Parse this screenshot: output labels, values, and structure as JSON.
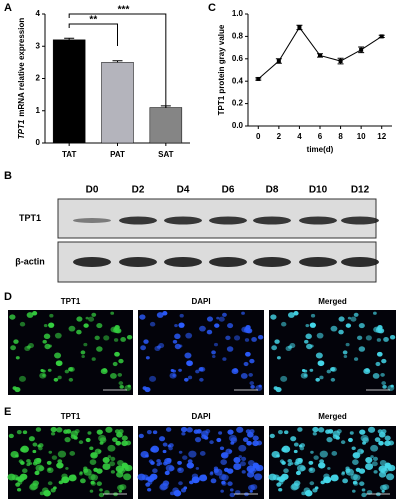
{
  "chart_data": [
    {
      "type": "bar",
      "panel": "A",
      "y_label_gene": "TPT1",
      "y_label": "mRNA relative  expression",
      "categories": [
        "TAT",
        "PAT",
        "SAT"
      ],
      "values": [
        3.2,
        2.5,
        1.1
      ],
      "errors": [
        0.05,
        0.05,
        0.05
      ],
      "colors": [
        "#000000",
        "#b4b4bc",
        "#858585"
      ],
      "ylim": [
        0,
        4
      ],
      "yticks": [
        0,
        1,
        2,
        3,
        4
      ],
      "annotations": [
        "**",
        "***"
      ]
    },
    {
      "type": "line",
      "panel": "C",
      "y_label": "TPT1 protein gray value",
      "x_label": "time(d)",
      "x": [
        0,
        2,
        4,
        6,
        8,
        10,
        12
      ],
      "values": [
        0.42,
        0.58,
        0.88,
        0.63,
        0.58,
        0.68,
        0.8
      ],
      "errors": [
        0.01,
        0.02,
        0.02,
        0.015,
        0.025,
        0.025,
        0.01
      ],
      "color": "#000000",
      "xlim": [
        -1,
        13
      ],
      "xticks": [
        0,
        2,
        4,
        6,
        8,
        10,
        12
      ],
      "ylim": [
        0,
        1
      ],
      "yticks": [
        {
          "value": 0,
          "label": "0.0"
        },
        0.2,
        0.4,
        0.6,
        0.8,
        {
          "value": 1,
          "label": "1.0"
        }
      ]
    }
  ],
  "blot": {
    "panel": "B",
    "lanes": [
      "D0",
      "D2",
      "D4",
      "D6",
      "D8",
      "D10",
      "D12"
    ],
    "rows": [
      "TPT1",
      "β-actin"
    ]
  },
  "micrographs": [
    {
      "panel": "D",
      "channels": [
        "TPT1",
        "DAPI",
        "Merged"
      ]
    },
    {
      "panel": "E",
      "channels": [
        "TPT1",
        "DAPI",
        "Merged"
      ]
    }
  ]
}
